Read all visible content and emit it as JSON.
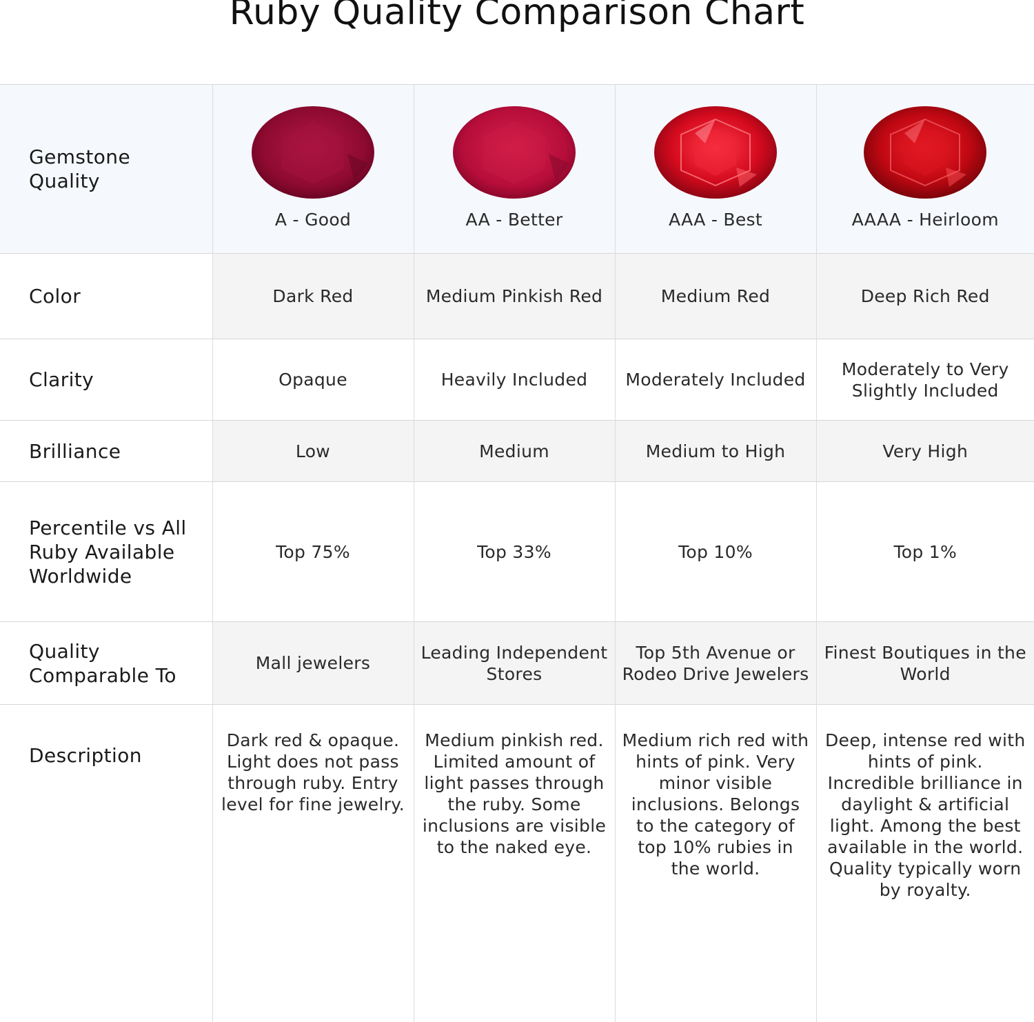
{
  "title": "Ruby Quality Comparison Chart",
  "colors": {
    "header_row_bg": "#f5f8fc",
    "shaded_row_bg": "#f4f4f4",
    "grid_line": "#d6d6d6"
  },
  "gems": [
    {
      "grade": "A - Good",
      "icon": "ruby-gem-dark-icon",
      "tone": "#9a0a33"
    },
    {
      "grade": "AA - Better",
      "icon": "ruby-gem-pinkish-icon",
      "tone": "#c2103d"
    },
    {
      "grade": "AAA - Best",
      "icon": "ruby-gem-medium-icon",
      "tone": "#d4081c"
    },
    {
      "grade": "AAAA - Heirloom",
      "icon": "ruby-gem-deep-icon",
      "tone": "#c40812"
    }
  ],
  "rows": {
    "quality": {
      "label": "Gemstone Quality"
    },
    "color": {
      "label": "Color",
      "values": [
        "Dark Red",
        "Medium Pinkish Red",
        "Medium Red",
        "Deep Rich Red"
      ]
    },
    "clarity": {
      "label": "Clarity",
      "values": [
        "Opaque",
        "Heavily Included",
        "Moderately Included",
        "Moderately to Very Slightly Included"
      ]
    },
    "brilliance": {
      "label": "Brilliance",
      "values": [
        "Low",
        "Medium",
        "Medium to High",
        "Very High"
      ]
    },
    "percentile": {
      "label": "Percentile vs All Ruby Available Worldwide",
      "values": [
        "Top 75%",
        "Top 33%",
        "Top 10%",
        "Top 1%"
      ]
    },
    "comparable": {
      "label": "Quality Comparable To",
      "values": [
        "Mall jewelers",
        "Leading Independent Stores",
        "Top 5th Avenue or Rodeo Drive Jewelers",
        "Finest Boutiques in the World"
      ]
    },
    "description": {
      "label": "Description",
      "values": [
        "Dark red & opaque. Light does not pass through ruby. Entry level for fine jewelry.",
        "Medium pinkish red. Limited amount of light passes through the ruby. Some inclusions are visible to the naked eye.",
        "Medium rich red with hints of pink. Very minor visible inclusions. Belongs to the category of top 10% rubies in the world.",
        "Deep, intense red with hints of pink. Incredible brilliance in daylight & artificial light. Among the best available in the world. Quality typically worn by royalty."
      ]
    }
  }
}
